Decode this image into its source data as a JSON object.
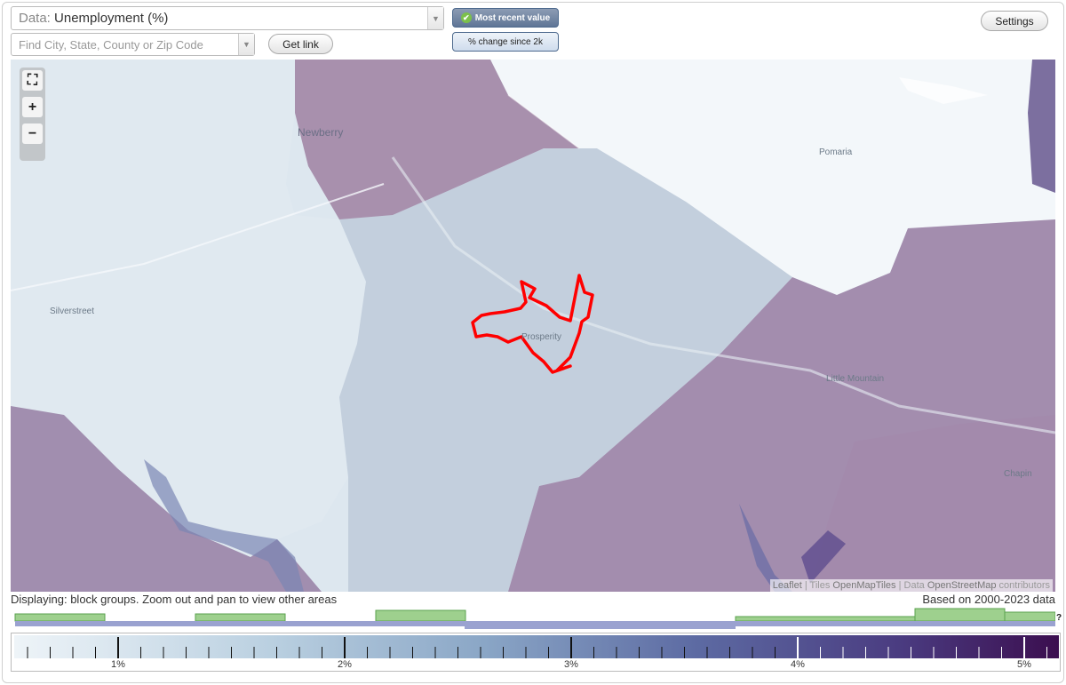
{
  "controls": {
    "data_prefix": "Data:",
    "data_value": "Unemployment (%)",
    "search_placeholder": "Find City, State, County or Zip Code",
    "get_link": "Get link",
    "most_recent": "Most recent value",
    "pct_change": "% change since 2k",
    "settings": "Settings"
  },
  "map": {
    "places": {
      "newberry": "Newberry",
      "pomaria": "Pomaria",
      "silverstreet": "Silverstreet",
      "prosperity": "Prosperity",
      "little_mountain": "Little Mountain",
      "chapin": "Chapin"
    },
    "zoom_labels": {
      "fullscreen": "⛶",
      "in": "+",
      "out": "−"
    },
    "attribution": {
      "leaflet": "Leaflet",
      "sep1": " | Tiles ",
      "tiles": "OpenMapTiles",
      "sep2": " | Data ",
      "osm": "OpenStreetMap",
      "tail": " contributors"
    },
    "colors": {
      "low": "#dfe9f0",
      "mid": "#b8c6d7",
      "high": "#9b7aa6",
      "highlight": "#ff0000"
    }
  },
  "footer": {
    "displaying": "Displaying: block groups. Zoom out and pan to view other areas",
    "based_on": "Based on 2000-2023 data",
    "help": "?"
  },
  "legend": {
    "ticks": [
      "1%",
      "2%",
      "3%",
      "4%",
      "5%"
    ]
  }
}
